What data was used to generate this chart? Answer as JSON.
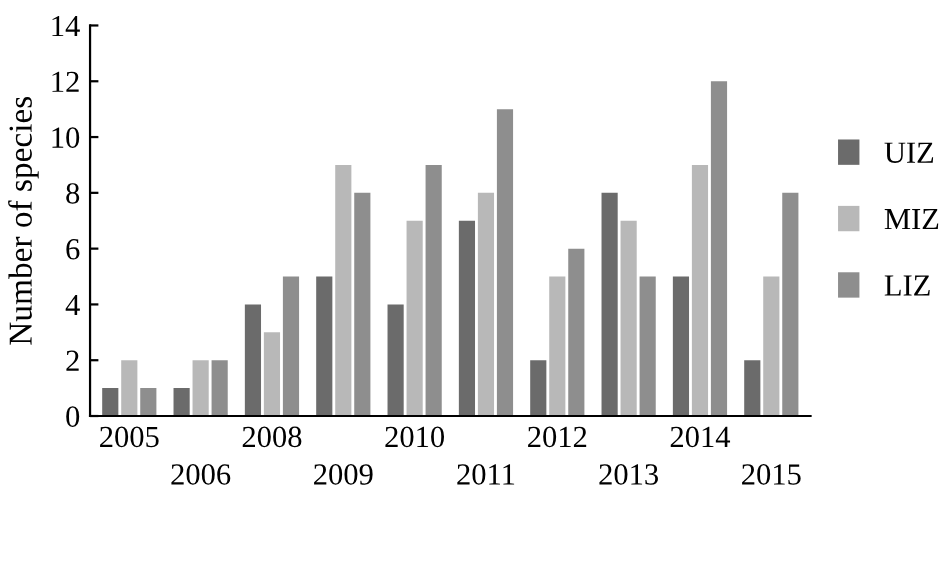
{
  "chart_data": {
    "type": "bar",
    "ylabel": "Number of species",
    "categories": [
      "2005",
      "2006",
      "2008",
      "2009",
      "2010",
      "2011",
      "2012",
      "2013",
      "2014",
      "2015"
    ],
    "series": [
      {
        "name": "UIZ",
        "color": "#6b6b6b",
        "values": [
          1,
          1,
          4,
          5,
          4,
          7,
          2,
          8,
          5,
          2
        ]
      },
      {
        "name": "MIZ",
        "color": "#b8b8b8",
        "values": [
          2,
          2,
          3,
          9,
          7,
          8,
          5,
          7,
          9,
          5
        ]
      },
      {
        "name": "LIZ",
        "color": "#8e8e8e",
        "values": [
          1,
          2,
          5,
          8,
          9,
          11,
          6,
          5,
          12,
          8
        ]
      }
    ],
    "ylim": [
      0,
      14
    ],
    "yticks": [
      0,
      2,
      4,
      6,
      8,
      10,
      12,
      14
    ],
    "grid": false,
    "legend": "right"
  }
}
